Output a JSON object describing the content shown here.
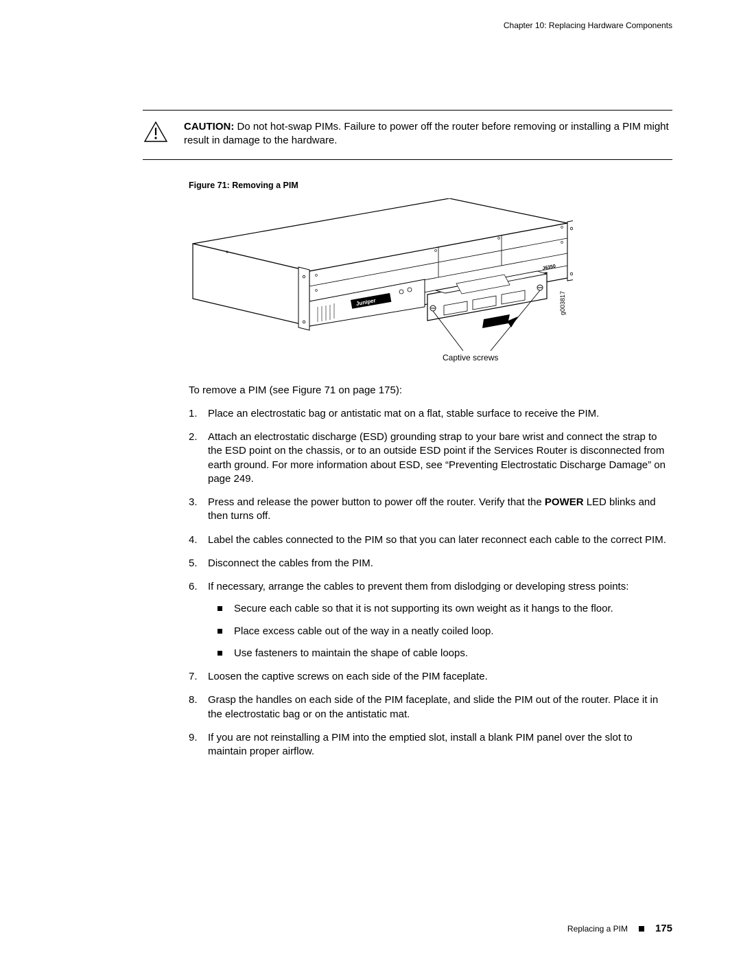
{
  "header": {
    "chapter_line": "Chapter 10: Replacing Hardware Components"
  },
  "notice": {
    "label": "CAUTION:",
    "text": "Do not hot-swap PIMs. Failure to power off the router before removing or installing a PIM might result in damage to the hardware."
  },
  "figure": {
    "caption": "Figure 71: Removing a PIM",
    "brand_label": "Juniper",
    "model_label": "J6350",
    "side_code": "g003817",
    "callout": "Captive screws"
  },
  "intro": "To remove a PIM (see Figure 71 on page 175):",
  "steps": [
    "Place an electrostatic bag or antistatic mat on a flat, stable surface to receive the PIM.",
    "Attach an electrostatic discharge (ESD) grounding strap to your bare wrist and connect the strap to the ESD point on the chassis, or to an outside ESD point if the Services Router is disconnected from earth ground. For more information about ESD, see “Preventing Electrostatic Discharge Damage” on page 249.",
    {
      "pre": "Press and release the power button to power off the router. Verify that the ",
      "bold": "POWER",
      "post": " LED blinks and then turns off."
    },
    "Label the cables connected to the PIM so that you can later reconnect each cable to the correct PIM.",
    "Disconnect the cables from the PIM.",
    {
      "text": "If necessary, arrange the cables to prevent them from dislodging or developing stress points:",
      "subs": [
        "Secure each cable so that it is not supporting its own weight as it hangs to the floor.",
        "Place excess cable out of the way in a neatly coiled loop.",
        "Use fasteners to maintain the shape of cable loops."
      ]
    },
    "Loosen the captive screws on each side of the PIM faceplate.",
    "Grasp the handles on each side of the PIM faceplate, and slide the PIM out of the router. Place it in the electrostatic bag or on the antistatic mat.",
    "If you are not reinstalling a PIM into the emptied slot, install a blank PIM panel over the slot to maintain proper airflow."
  ],
  "footer": {
    "title": "Replacing a PIM",
    "page": "175"
  },
  "colors": {
    "text": "#000000",
    "bg": "#ffffff",
    "line_gray": "#666666"
  }
}
